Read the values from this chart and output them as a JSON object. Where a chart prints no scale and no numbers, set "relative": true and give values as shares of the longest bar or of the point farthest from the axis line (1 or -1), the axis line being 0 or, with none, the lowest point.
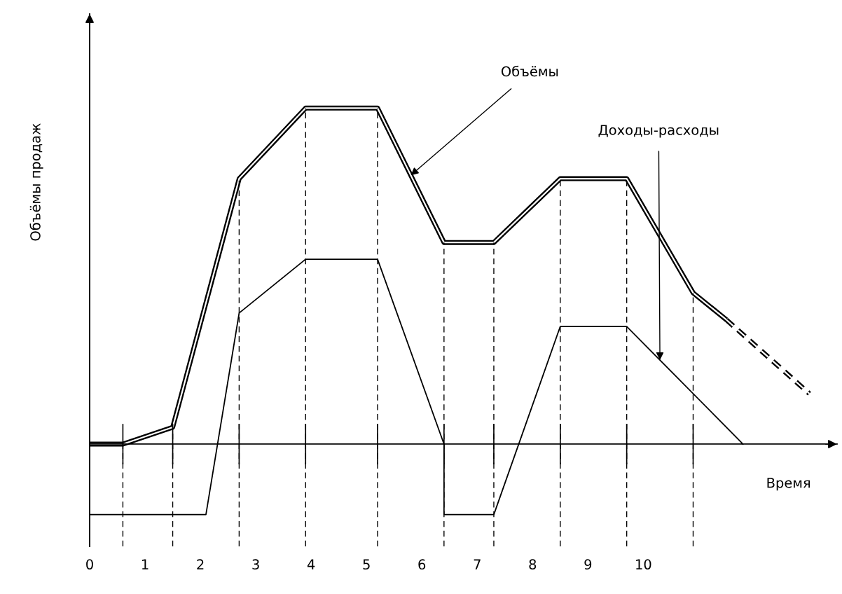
{
  "chart_data": {
    "type": "line",
    "relative": true,
    "xlabel": "Время",
    "ylabel": "Объёмы продаж",
    "xlim": [
      0,
      13.5
    ],
    "xticks": [
      0,
      1,
      2,
      3,
      4,
      5,
      6,
      7,
      8,
      9,
      10
    ],
    "series": [
      {
        "color": "#000000",
        "line_style": "solid",
        "x": [
          0,
          0.6,
          1.5,
          2.7,
          3.9,
          5.2,
          6.4,
          7.3,
          8.5,
          9.7,
          10.9,
          11.5
        ],
        "values": [
          0,
          0,
          0.05,
          0.79,
          1,
          1,
          0.6,
          0.6,
          0.79,
          0.79,
          0.45,
          0.37
        ]
      },
      {
        "color": "#000000",
        "line_style": "dashed",
        "x": [
          11.5,
          13
        ],
        "values": [
          0.37,
          0.15
        ]
      },
      {
        "color": "#000000",
        "line_style": "solid",
        "x": [
          0,
          2.1,
          2.7,
          3.9,
          5.2,
          6.4,
          6.4,
          7.3,
          8.5,
          9.7,
          11.8
        ],
        "values": [
          -0.21,
          -0.21,
          0.39,
          0.55,
          0.55,
          0,
          -0.21,
          -0.21,
          0.35,
          0.35,
          0
        ]
      }
    ],
    "ref_lines": [
      {
        "axis": "x",
        "value": 0.6,
        "line_style": "dashed"
      },
      {
        "axis": "x",
        "value": 1.5,
        "line_style": "dashed"
      },
      {
        "axis": "x",
        "value": 2.7,
        "line_style": "dashed"
      },
      {
        "axis": "x",
        "value": 3.9,
        "line_style": "dashed"
      },
      {
        "axis": "x",
        "value": 5.2,
        "line_style": "dashed"
      },
      {
        "axis": "x",
        "value": 6.4,
        "line_style": "dashed"
      },
      {
        "axis": "x",
        "value": 7.3,
        "line_style": "dashed"
      },
      {
        "axis": "x",
        "value": 8.5,
        "line_style": "dashed"
      },
      {
        "axis": "x",
        "value": 9.7,
        "line_style": "dashed"
      },
      {
        "axis": "x",
        "value": 10.9,
        "line_style": "dashed"
      }
    ],
    "annotations": [
      {
        "text": "Объёмы",
        "x": 5.8,
        "y": 0.8
      },
      {
        "text": "Доходы-расходы",
        "x": 10.3,
        "y": 0.25
      }
    ]
  }
}
